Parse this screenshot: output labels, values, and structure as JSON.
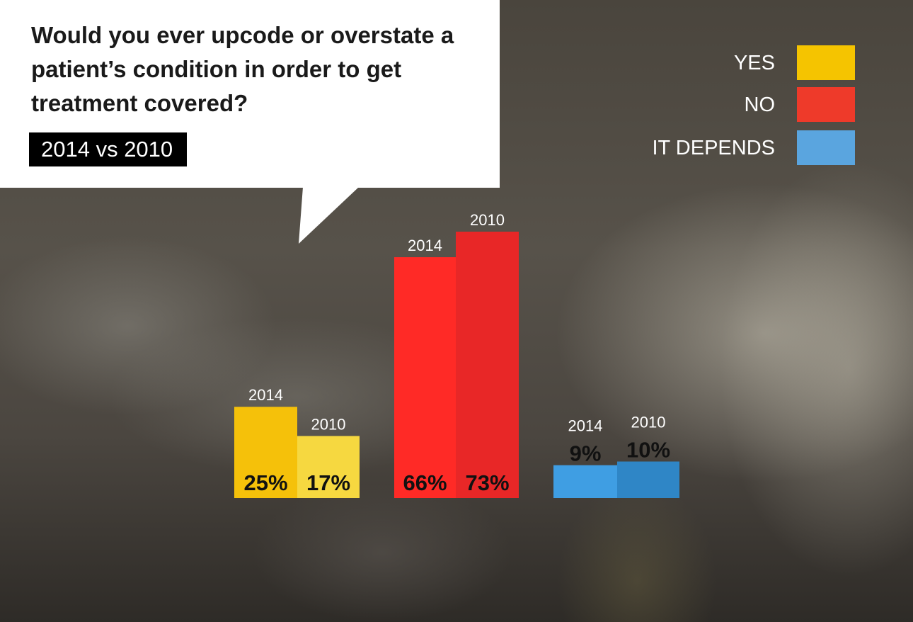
{
  "question": "Would you ever upcode or overstate a patient’s condition in order to get treatment covered?",
  "subtitle": "2014 vs 2010",
  "legend": [
    {
      "label": "YES",
      "color": "#f5c400"
    },
    {
      "label": "NO",
      "color": "#ee3a2a"
    },
    {
      "label": "IT DEPENDS",
      "color": "#5aa5df"
    }
  ],
  "chart_data": {
    "type": "bar",
    "categories": [
      "YES",
      "NO",
      "IT DEPENDS"
    ],
    "series": [
      {
        "name": "2014",
        "values": [
          25,
          66,
          9
        ],
        "labels": [
          "25%",
          "66%",
          "9%"
        ]
      },
      {
        "name": "2010",
        "values": [
          17,
          73,
          10
        ],
        "labels": [
          "17%",
          "73%",
          "10%"
        ]
      }
    ],
    "colors": {
      "YES": [
        "#f5c10a",
        "#f6d840"
      ],
      "NO": [
        "#ff2a26",
        "#e82727"
      ],
      "IT DEPENDS": [
        "#3f9ee3",
        "#2f86c6"
      ]
    },
    "ylim": [
      0,
      73
    ],
    "grid": false,
    "legend_position": "top-right"
  }
}
